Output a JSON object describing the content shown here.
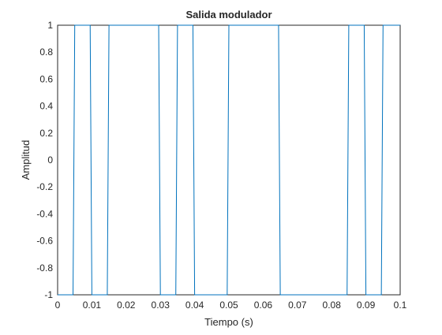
{
  "chart_data": {
    "type": "line",
    "title": "Salida modulador",
    "xlabel": "Tiempo (s)",
    "ylabel": "Amplitud",
    "xlim": [
      0,
      0.1
    ],
    "ylim": [
      -1,
      1
    ],
    "grid": false,
    "xticks": [
      "0",
      "0.01",
      "0.02",
      "0.03",
      "0.04",
      "0.05",
      "0.06",
      "0.07",
      "0.08",
      "0.09",
      "0.1"
    ],
    "yticks": [
      "-1",
      "-0.8",
      "-0.6",
      "-0.4",
      "-0.2",
      "0",
      "0.2",
      "0.4",
      "0.6",
      "0.8",
      "1"
    ],
    "line_color": "#0072BD",
    "series": [
      {
        "x": [
          0,
          0.0045,
          0.005,
          0.0095,
          0.01,
          0.0145,
          0.015,
          0.0295,
          0.03,
          0.0345,
          0.035,
          0.0395,
          0.04,
          0.0495,
          0.05,
          0.0645,
          0.065,
          0.0845,
          0.085,
          0.0895,
          0.09,
          0.0945,
          0.095,
          0.1
        ],
        "y": [
          -1,
          -1,
          1,
          1,
          -1,
          -1,
          1,
          1,
          -1,
          -1,
          1,
          1,
          -1,
          -1,
          1,
          1,
          -1,
          -1,
          1,
          1,
          -1,
          -1,
          1,
          1
        ]
      }
    ]
  }
}
